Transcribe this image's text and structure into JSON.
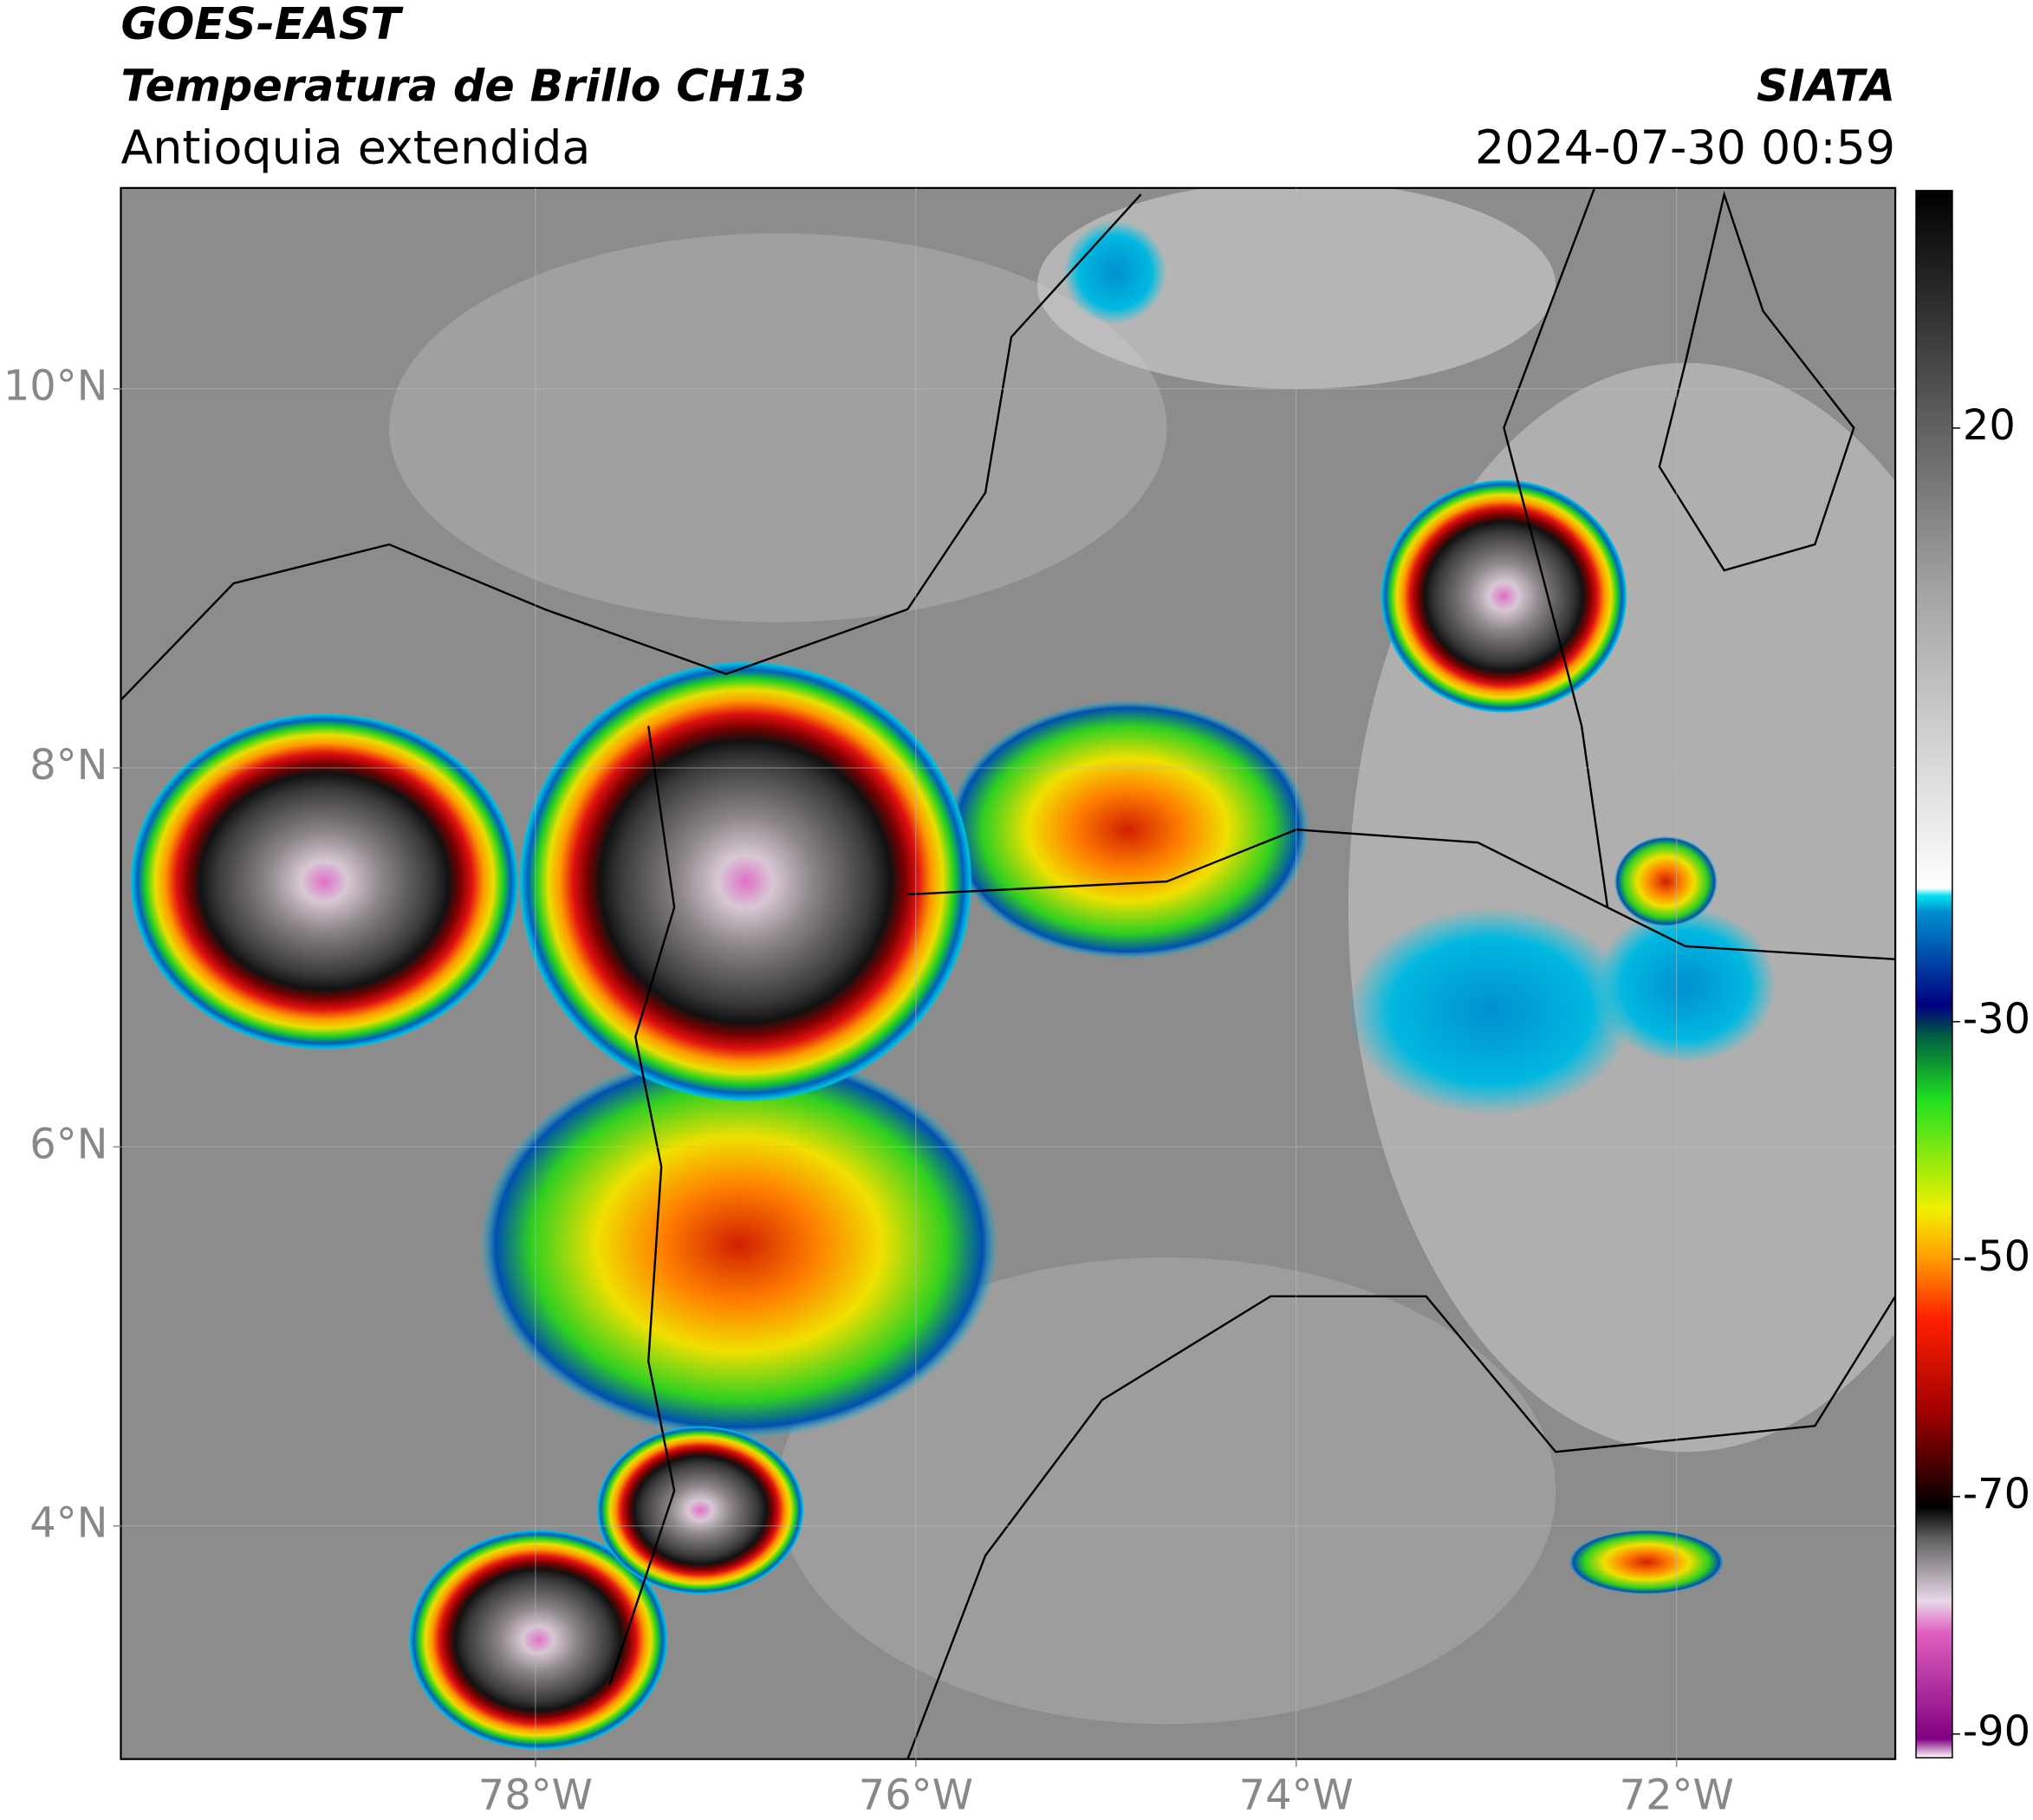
{
  "map": {
    "title": "GOES-EAST",
    "subtitle": "Temperatura de Brillo CH13",
    "region": "Antioquia extendida",
    "source": "SIATA",
    "datetime": "2024-07-30 00:59",
    "xlim": [
      -80.18,
      -70.85
    ],
    "ylim": [
      2.77,
      11.06
    ],
    "xticks": [
      {
        "value": -78,
        "label": "78°W"
      },
      {
        "value": -76,
        "label": "76°W"
      },
      {
        "value": -74,
        "label": "74°W"
      },
      {
        "value": -72,
        "label": "72°W"
      }
    ],
    "yticks": [
      {
        "value": 10,
        "label": "10°N"
      },
      {
        "value": 8,
        "label": "8°N"
      },
      {
        "value": 6,
        "label": "6°N"
      },
      {
        "value": 4,
        "label": "4°N"
      }
    ],
    "grid": true,
    "colorbar": {
      "lim": [
        -92,
        40
      ],
      "ticks": [
        20,
        -30,
        -50,
        -70,
        -90
      ]
    }
  }
}
